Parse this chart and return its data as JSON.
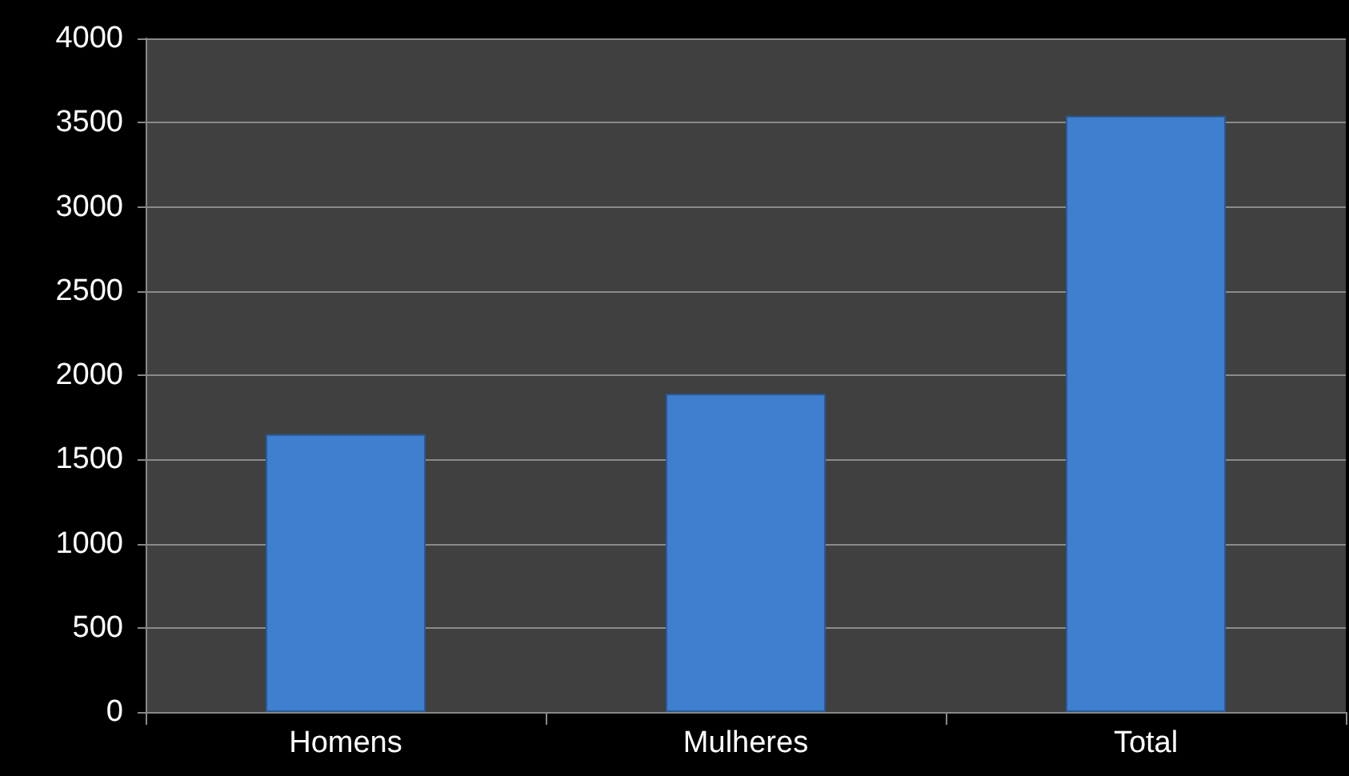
{
  "chart_data": {
    "type": "bar",
    "categories": [
      "Homens",
      "Mulheres",
      "Total"
    ],
    "values": [
      1650,
      1890,
      3540
    ],
    "color": "#3f7fcf",
    "ylim": [
      0,
      4000
    ],
    "yticks": [
      0,
      500,
      1000,
      1500,
      2000,
      2500,
      3000,
      3500,
      4000
    ],
    "grid": "y"
  }
}
